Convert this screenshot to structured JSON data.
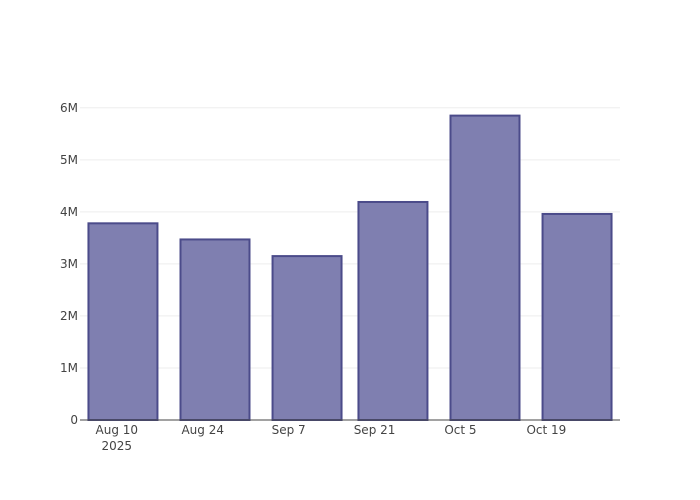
{
  "chart_data": {
    "type": "bar",
    "x": [
      "2025-08-11",
      "2025-08-26",
      "2025-09-10",
      "2025-09-24",
      "2025-10-09",
      "2025-10-24"
    ],
    "values": [
      3780000,
      3470000,
      3150000,
      4190000,
      5850000,
      3960000
    ],
    "color": "#7f7fb0",
    "edge_color": "#4b4b8a",
    "xlim": [
      "2025-08-04",
      "2025-10-31"
    ],
    "xticks": [
      {
        "value": "2025-08-10",
        "label": "Aug 10\n2025"
      },
      {
        "value": "2025-08-24",
        "label": "Aug 24"
      },
      {
        "value": "2025-09-07",
        "label": "Sep 7"
      },
      {
        "value": "2025-09-21",
        "label": "Sep 21"
      },
      {
        "value": "2025-10-05",
        "label": "Oct 5"
      },
      {
        "value": "2025-10-19",
        "label": "Oct 19"
      }
    ],
    "ylim": [
      0,
      6150000
    ],
    "yticks": [
      0,
      {
        "value": 1000000,
        "label": "1M"
      },
      {
        "value": 2000000,
        "label": "2M"
      },
      {
        "value": 3000000,
        "label": "3M"
      },
      {
        "value": 4000000,
        "label": "4M"
      },
      {
        "value": 5000000,
        "label": "5M"
      },
      {
        "value": 6000000,
        "label": "6M"
      }
    ],
    "grid": true
  }
}
